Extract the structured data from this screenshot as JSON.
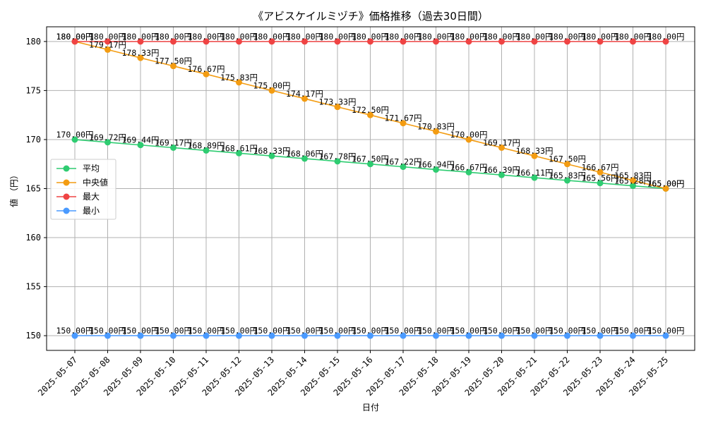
{
  "chart_data": {
    "type": "line",
    "title": "《アビスケイルミヅチ》価格推移（過去30日間）",
    "xlabel": "日付",
    "ylabel": "値 （円）",
    "ylim": [
      148.5,
      181.5
    ],
    "yticks": [
      150,
      155,
      160,
      165,
      170,
      175,
      180
    ],
    "grid": true,
    "legend_position": "center-left",
    "value_suffix": "円",
    "categories": [
      "2025-05-07",
      "2025-05-08",
      "2025-05-09",
      "2025-05-10",
      "2025-05-11",
      "2025-05-12",
      "2025-05-13",
      "2025-05-14",
      "2025-05-15",
      "2025-05-16",
      "2025-05-17",
      "2025-05-18",
      "2025-05-19",
      "2025-05-20",
      "2025-05-21",
      "2025-05-22",
      "2025-05-23",
      "2025-05-24",
      "2025-05-25"
    ],
    "series": [
      {
        "name": "平均",
        "color": "#2ecc71",
        "values": [
          170.0,
          169.72,
          169.44,
          169.17,
          168.89,
          168.61,
          168.33,
          168.06,
          167.78,
          167.5,
          167.22,
          166.94,
          166.67,
          166.39,
          166.11,
          165.83,
          165.56,
          165.28,
          165.0
        ]
      },
      {
        "name": "中央値",
        "color": "#f39c12",
        "values": [
          180.0,
          179.17,
          178.33,
          177.5,
          176.67,
          175.83,
          175.0,
          174.17,
          173.33,
          172.5,
          171.67,
          170.83,
          170.0,
          169.17,
          168.33,
          167.5,
          166.67,
          165.83,
          165.0
        ]
      },
      {
        "name": "最大",
        "color": "#ef4444",
        "values": [
          180.0,
          180.0,
          180.0,
          180.0,
          180.0,
          180.0,
          180.0,
          180.0,
          180.0,
          180.0,
          180.0,
          180.0,
          180.0,
          180.0,
          180.0,
          180.0,
          180.0,
          180.0,
          180.0
        ]
      },
      {
        "name": "最小",
        "color": "#4a9aff",
        "values": [
          150.0,
          150.0,
          150.0,
          150.0,
          150.0,
          150.0,
          150.0,
          150.0,
          150.0,
          150.0,
          150.0,
          150.0,
          150.0,
          150.0,
          150.0,
          150.0,
          150.0,
          150.0,
          150.0
        ]
      }
    ]
  }
}
